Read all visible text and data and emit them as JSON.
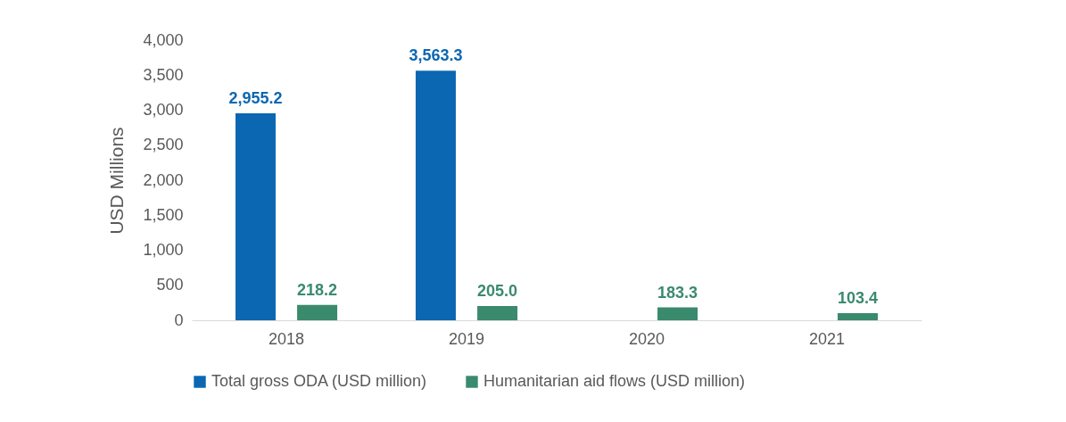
{
  "chart_data": {
    "type": "bar",
    "ylabel": "USD Millions",
    "categories": [
      "2018",
      "2019",
      "2020",
      "2021"
    ],
    "series": [
      {
        "name": "Total gross ODA (USD million)",
        "color": "#0b67b2",
        "values": [
          2955.2,
          3563.3,
          null,
          null
        ],
        "value_labels": [
          "2,955.2",
          "3,563.3",
          null,
          null
        ]
      },
      {
        "name": "Humanitarian aid flows (USD million)",
        "color": "#3a8a6e",
        "values": [
          218.2,
          205.0,
          183.3,
          103.4
        ],
        "value_labels": [
          "218.2",
          "205.0",
          "183.3",
          "103.4"
        ]
      }
    ],
    "ylim": [
      0,
      4000
    ],
    "yticks": [
      0,
      500,
      {
        "value": 1000,
        "label": "1,000"
      },
      {
        "value": 1500,
        "label": "1,500"
      },
      {
        "value": 2000,
        "label": "2,000"
      },
      {
        "value": 2500,
        "label": "2,500"
      },
      {
        "value": 3000,
        "label": "3,000"
      },
      {
        "value": 3500,
        "label": "3,500"
      },
      {
        "value": 4000,
        "label": "4,000"
      }
    ],
    "grid": false,
    "legend": "bottom"
  }
}
